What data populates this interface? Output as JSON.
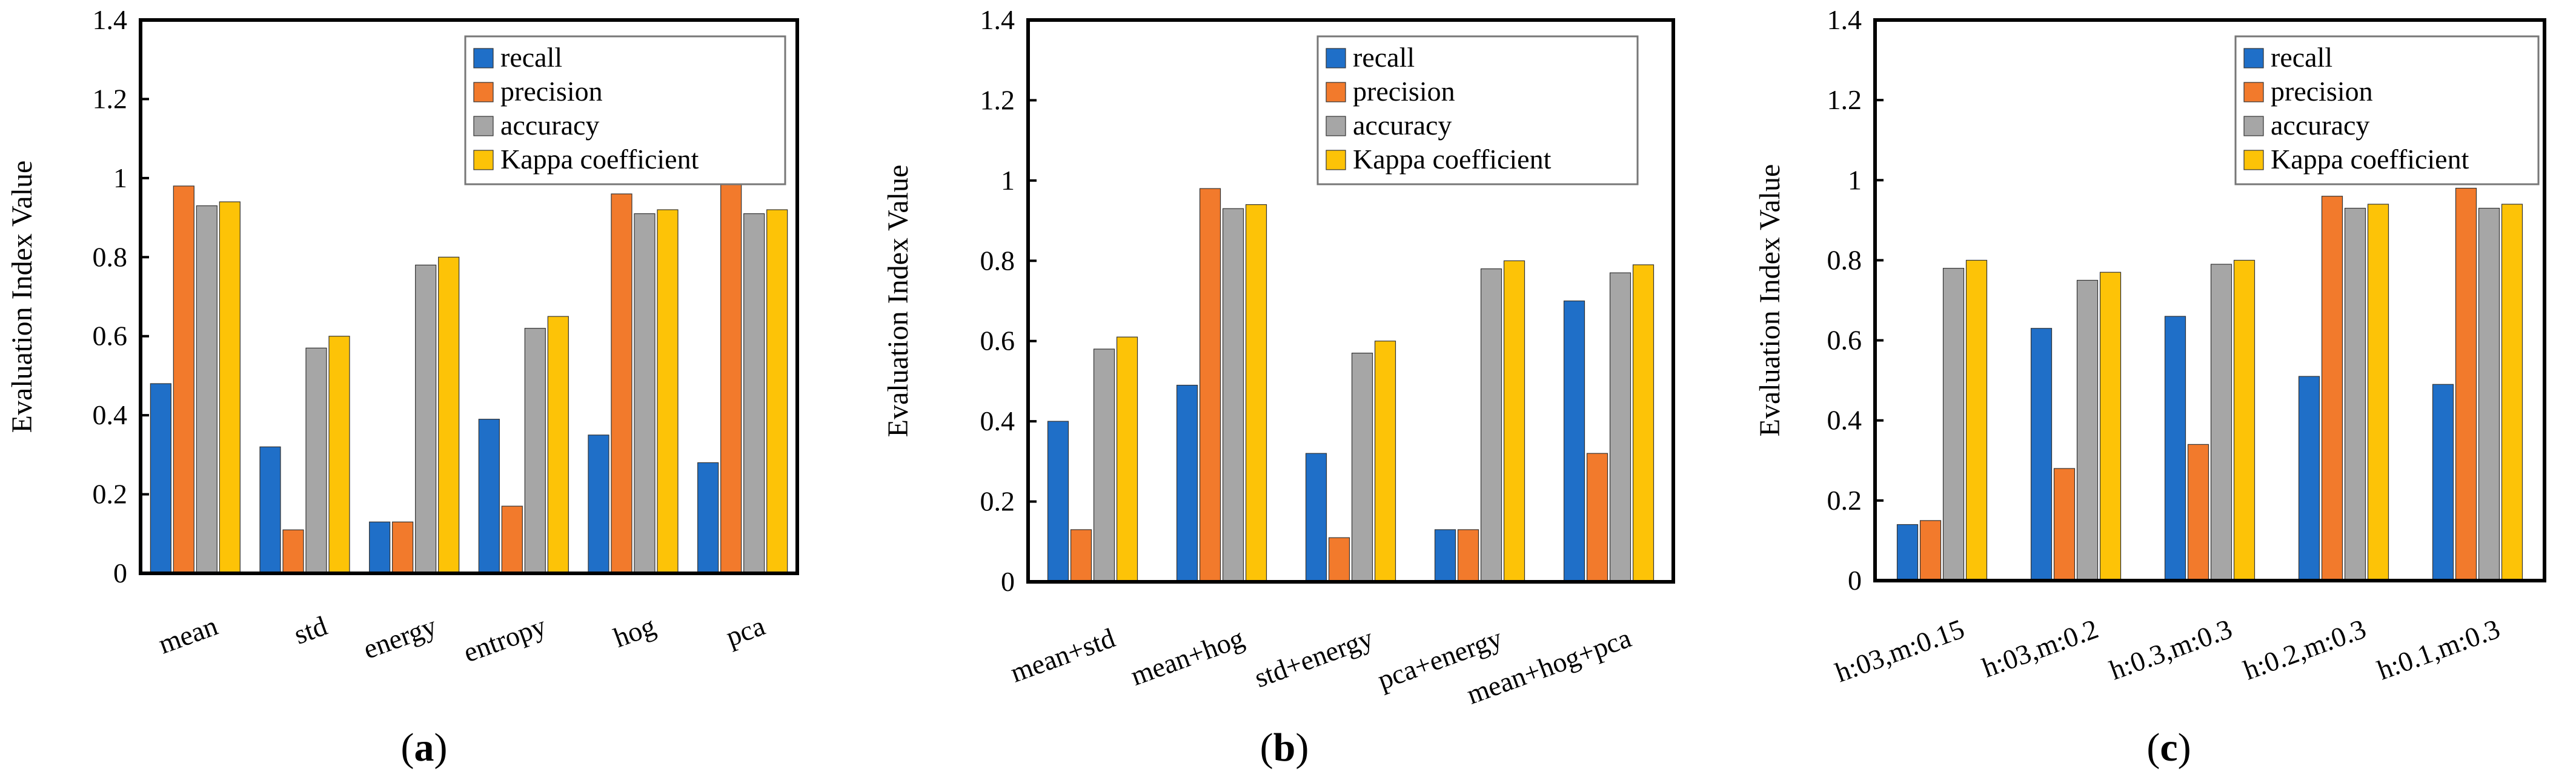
{
  "colors": {
    "recall": "#1f6fc8",
    "precision": "#f27a2c",
    "accuracy": "#a6a6a6",
    "kappa": "#fdc307"
  },
  "chart_data": [
    {
      "type": "bar",
      "caption_letter": "a",
      "ylabel": "Evaluation Index Value",
      "ylim": [
        0,
        1.4
      ],
      "yticks": [
        "0",
        "0.2",
        "0.4",
        "0.6",
        "0.8",
        "1",
        "1.2",
        "1.4"
      ],
      "legend_position": "top-right",
      "categories": [
        "mean",
        "std",
        "energy",
        "entropy",
        "hog",
        "pca"
      ],
      "series": [
        {
          "name": "recall",
          "values": [
            0.48,
            0.32,
            0.13,
            0.39,
            0.35,
            0.28
          ]
        },
        {
          "name": "precision",
          "values": [
            0.98,
            0.11,
            0.13,
            0.17,
            0.96,
            0.99
          ]
        },
        {
          "name": "accuracy",
          "values": [
            0.93,
            0.57,
            0.78,
            0.62,
            0.91,
            0.91
          ]
        },
        {
          "name": "Kappa coefficient",
          "values": [
            0.94,
            0.6,
            0.8,
            0.65,
            0.92,
            0.92
          ]
        }
      ]
    },
    {
      "type": "bar",
      "caption_letter": "b",
      "ylabel": "Evaluation Index Value",
      "ylim": [
        0,
        1.4
      ],
      "yticks": [
        "0",
        "0.2",
        "0.4",
        "0.6",
        "0.8",
        "1",
        "1.2",
        "1.4"
      ],
      "legend_position": "top-right",
      "categories": [
        "mean+std",
        "mean+hog",
        "std+energy",
        "pca+energy",
        "mean+hog+pca"
      ],
      "series": [
        {
          "name": "recall",
          "values": [
            0.4,
            0.49,
            0.32,
            0.13,
            0.7
          ]
        },
        {
          "name": "precision",
          "values": [
            0.13,
            0.98,
            0.11,
            0.13,
            0.32
          ]
        },
        {
          "name": "accuracy",
          "values": [
            0.58,
            0.93,
            0.57,
            0.78,
            0.77
          ]
        },
        {
          "name": "Kappa coefficient",
          "values": [
            0.61,
            0.94,
            0.6,
            0.8,
            0.79
          ]
        }
      ]
    },
    {
      "type": "bar",
      "caption_letter": "c",
      "ylabel": "Evaluation Index Value",
      "ylim": [
        0,
        1.4
      ],
      "yticks": [
        "0",
        "0.2",
        "0.4",
        "0.6",
        "0.8",
        "1",
        "1.2",
        "1.4"
      ],
      "legend_position": "top-right",
      "categories": [
        "h:03,m:0.15",
        "h:03,m:0.2",
        "h:0.3,m:0.3",
        "h:0.2,m:0.3",
        "h:0.1,m:0.3"
      ],
      "series": [
        {
          "name": "recall",
          "values": [
            0.14,
            0.63,
            0.66,
            0.51,
            0.49
          ]
        },
        {
          "name": "precision",
          "values": [
            0.15,
            0.28,
            0.34,
            0.96,
            0.98
          ]
        },
        {
          "name": "accuracy",
          "values": [
            0.78,
            0.75,
            0.79,
            0.93,
            0.93
          ]
        },
        {
          "name": "Kappa coefficient",
          "values": [
            0.8,
            0.77,
            0.8,
            0.94,
            0.94
          ]
        }
      ]
    }
  ]
}
